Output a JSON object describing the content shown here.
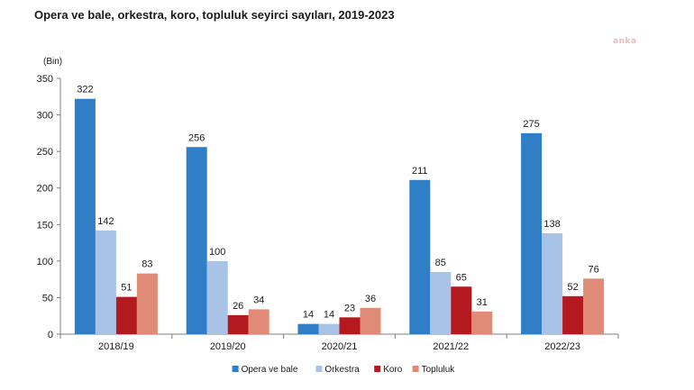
{
  "title": "Opera ve bale, orkestra, koro, topluluk seyirci sayıları, 2019-2023",
  "watermark": "anka",
  "chart_data": {
    "type": "bar",
    "title": "Opera ve bale, orkestra, koro, topluluk seyirci sayıları, 2019-2023",
    "ylabel": "(Bin)",
    "xlabel": "",
    "ylim": [
      0,
      350
    ],
    "yticks": [
      0,
      50,
      100,
      150,
      200,
      250,
      300,
      350
    ],
    "categories": [
      "2018/19",
      "2019/20",
      "2020/21",
      "2021/22",
      "2022/23"
    ],
    "series": [
      {
        "name": "Opera ve bale",
        "color": "#2f7ec6",
        "values": [
          322,
          256,
          14,
          211,
          275
        ]
      },
      {
        "name": "Orkestra",
        "color": "#a9c3e6",
        "values": [
          142,
          100,
          14,
          85,
          138
        ]
      },
      {
        "name": "Koro",
        "color": "#b3191f",
        "values": [
          51,
          26,
          23,
          65,
          52
        ]
      },
      {
        "name": "Topluluk",
        "color": "#e08a78",
        "values": [
          83,
          34,
          36,
          31,
          76
        ]
      }
    ],
    "legend_position": "bottom",
    "grid": false
  }
}
